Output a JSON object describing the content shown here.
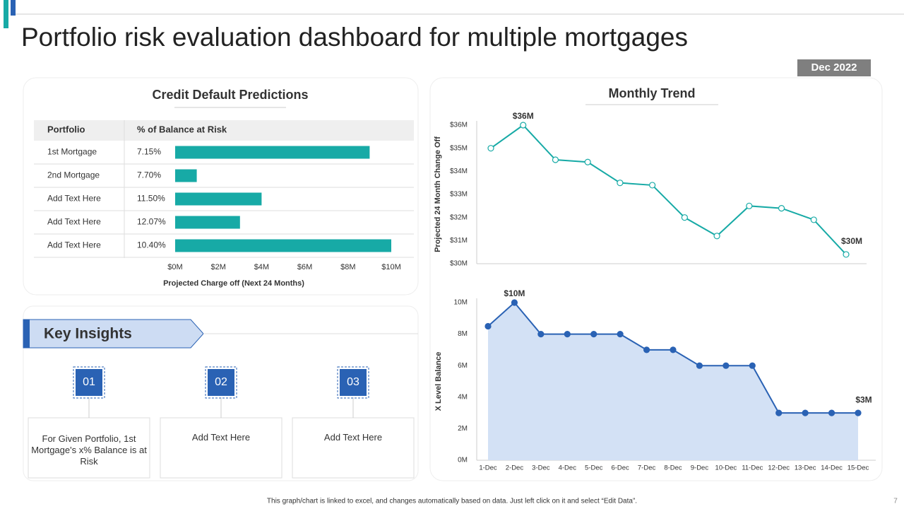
{
  "title": "Portfolio risk evaluation dashboard for multiple mortgages",
  "date": "Dec 2022",
  "chart_data": [
    {
      "type": "bar",
      "title": "Credit Default Predictions",
      "columns": [
        "Portfolio",
        "% of Balance at Risk"
      ],
      "categories": [
        "1st Mortgage",
        "2nd Mortgage",
        "Add Text Here",
        "Add Text Here",
        "Add Text Here"
      ],
      "risk_percent": [
        7.15,
        7.7,
        11.5,
        12.07,
        10.4
      ],
      "risk_percent_labels": [
        "7.15%",
        "7.70%",
        "11.50%",
        "12.07%",
        "10.40%"
      ],
      "values": [
        9,
        1,
        4,
        3,
        10
      ],
      "color": "#17aaa6",
      "x_label": "Projected Charge off (Next 24 Months)",
      "xlim": [
        0,
        10
      ],
      "xticks": [
        {
          "value": 0,
          "label": "$0M"
        },
        {
          "value": 2,
          "label": "$2M"
        },
        {
          "value": 4,
          "label": "$4M"
        },
        {
          "value": 6,
          "label": "$6M"
        },
        {
          "value": 8,
          "label": "$8M"
        },
        {
          "value": 10,
          "label": "$10M"
        }
      ]
    },
    {
      "type": "line",
      "title": "Monthly Trend",
      "y_label": "Projected 24 Month Change Off",
      "values": [
        35.0,
        36.0,
        34.5,
        34.4,
        33.5,
        33.4,
        32.0,
        31.2,
        32.5,
        32.4,
        31.9,
        30.4
      ],
      "value_labels": [
        null,
        "$36M",
        null,
        null,
        null,
        null,
        null,
        null,
        null,
        null,
        null,
        "$30M"
      ],
      "color": "#17aaa6",
      "ylim": [
        30,
        36
      ],
      "yticks": [
        {
          "value": 30,
          "label": "$30M"
        },
        {
          "value": 31,
          "label": "$31M"
        },
        {
          "value": 32,
          "label": "$32M"
        },
        {
          "value": 33,
          "label": "$33M"
        },
        {
          "value": 34,
          "label": "$34M"
        },
        {
          "value": 35,
          "label": "$35M"
        },
        {
          "value": 36,
          "label": "$36M"
        }
      ]
    },
    {
      "type": "area",
      "y_label": "X Level Balance",
      "categories": [
        "1-Dec",
        "2-Dec",
        "3-Dec",
        "4-Dec",
        "5-Dec",
        "6-Dec",
        "7-Dec",
        "8-Dec",
        "9-Dec",
        "10-Dec",
        "11-Dec",
        "12-Dec",
        "13-Dec",
        "14-Dec",
        "15-Dec"
      ],
      "values": [
        8.5,
        10,
        8,
        8,
        8,
        8,
        7,
        7,
        6,
        6,
        6,
        3,
        3,
        3,
        3
      ],
      "value_labels": [
        null,
        "$10M",
        null,
        null,
        null,
        null,
        null,
        null,
        null,
        null,
        null,
        null,
        null,
        null,
        "$3M"
      ],
      "color": "#2a62b4",
      "fill": "#d3e1f5",
      "ylim": [
        0,
        10
      ],
      "yticks": [
        {
          "value": 0,
          "label": "0M"
        },
        {
          "value": 2,
          "label": "2M"
        },
        {
          "value": 4,
          "label": "4M"
        },
        {
          "value": 6,
          "label": "6M"
        },
        {
          "value": 8,
          "label": "8M"
        },
        {
          "value": 10,
          "label": "10M"
        }
      ]
    }
  ],
  "insights": {
    "title": "Key Insights",
    "items": [
      {
        "number": "01",
        "text": "For Given Portfolio, 1st Mortgage's x% Balance is at Risk"
      },
      {
        "number": "02",
        "text": "Add Text Here"
      },
      {
        "number": "03",
        "text": "Add Text Here"
      }
    ]
  },
  "footer": "This graph/chart is linked to excel, and changes automatically based on data. Just left click on it and select “Edit Data”.",
  "page_number": "7"
}
